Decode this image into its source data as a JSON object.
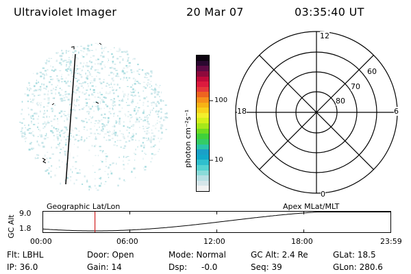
{
  "header": {
    "title": "Ultraviolet Imager",
    "date": "20 Mar 07",
    "time": "03:35:40 UT"
  },
  "colorbar": {
    "label": "photon cm⁻²s⁻¹",
    "ticks": [
      "100",
      "10"
    ],
    "colors": [
      "#f2f2f2",
      "#d6e6ea",
      "#b8e0e4",
      "#8adbd9",
      "#55d3d1",
      "#2fbfcd",
      "#12a9c9",
      "#1aa0c8",
      "#2bc6a7",
      "#34cc66",
      "#3fd13a",
      "#6fdc20",
      "#a6e81a",
      "#d4f01a",
      "#f3ef2b",
      "#f8d21c",
      "#f7b315",
      "#f6901b",
      "#ee6420",
      "#e6383a",
      "#dc1a3e",
      "#c00a3a",
      "#8e0a3c",
      "#5c0a44",
      "#2b0830",
      "#0d0410"
    ]
  },
  "polar_plot": {
    "mlt_labels": {
      "top": "12",
      "left": "18",
      "right": "6",
      "bottom": "0"
    },
    "lat_labels": [
      "60",
      "70",
      "80"
    ]
  },
  "timeline": {
    "left_title": "Geographic Lat/Lon",
    "right_title": "Apex MLat/MLT",
    "ylabel": "GC Alt",
    "y_ticks": [
      "9.0",
      "1.8"
    ],
    "x_ticks": [
      "00:00",
      "06:00",
      "12:00",
      "18:00",
      "23:59"
    ],
    "marker_time_fraction": 0.1498,
    "marker_color": "#d22020"
  },
  "footer": {
    "filter": "Flt: LBHL",
    "ip": "IP: 36.0",
    "door": "Door: Open",
    "gain": "Gain: 14",
    "mode": "Mode: Normal",
    "dsp_label": "Dsp:",
    "dsp_value": "-0.0",
    "gc_alt": "GC Alt: 2.4 Re",
    "seq": "Seq: 39",
    "glat": "GLat: 18.5",
    "glon": "GLon: 280.6"
  }
}
